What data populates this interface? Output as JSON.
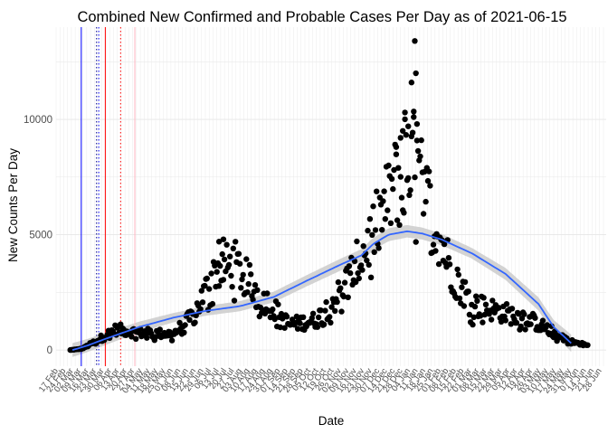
{
  "chart_data": {
    "type": "scatter",
    "title": "Combined New Confirmed and Probable Cases Per Day as of 2021-06-15",
    "xlabel": "Date",
    "ylabel": "New Counts Per Day",
    "grid": true,
    "legend": "none",
    "xlim": [
      "2020-02-15",
      "2021-07-02"
    ],
    "ylim": [
      -700,
      14000
    ],
    "y_ticks": [
      0,
      5000,
      10000
    ],
    "y_tick_labels": [
      "0",
      "5000",
      "10000"
    ],
    "x_tick_dates": [
      "2020-02-17",
      "2020-02-24",
      "2020-03-02",
      "2020-03-09",
      "2020-03-16",
      "2020-03-23",
      "2020-03-30",
      "2020-04-06",
      "2020-04-13",
      "2020-04-20",
      "2020-04-27",
      "2020-05-04",
      "2020-05-11",
      "2020-05-18",
      "2020-05-25",
      "2020-06-01",
      "2020-06-08",
      "2020-06-15",
      "2020-06-22",
      "2020-06-29",
      "2020-07-06",
      "2020-07-13",
      "2020-07-20",
      "2020-07-27",
      "2020-08-03",
      "2020-08-10",
      "2020-08-17",
      "2020-08-24",
      "2020-08-31",
      "2020-09-07",
      "2020-09-14",
      "2020-09-21",
      "2020-09-28",
      "2020-10-05",
      "2020-10-12",
      "2020-10-19",
      "2020-10-26",
      "2020-11-02",
      "2020-11-09",
      "2020-11-16",
      "2020-11-23",
      "2020-11-30",
      "2020-12-07",
      "2020-12-14",
      "2020-12-21",
      "2020-12-28",
      "2021-01-04",
      "2021-01-11",
      "2021-01-18",
      "2021-01-25",
      "2021-02-01",
      "2021-02-08",
      "2021-02-15",
      "2021-02-22",
      "2021-03-01",
      "2021-03-08",
      "2021-03-15",
      "2021-03-22",
      "2021-03-29",
      "2021-04-05",
      "2021-04-12",
      "2021-04-19",
      "2021-04-26",
      "2021-05-03",
      "2021-05-10",
      "2021-05-17",
      "2021-05-24",
      "2021-05-31",
      "2021-06-07",
      "2021-06-14",
      "2021-06-21",
      "2021-06-28"
    ],
    "x_tick_labels": [
      "17 Feb",
      "24 Feb",
      "02 Mar",
      "09 Mar",
      "16 Mar",
      "23 Mar",
      "30 Mar",
      "06 Apr",
      "13 Apr",
      "20 Apr",
      "27 Apr",
      "04 May",
      "11 May",
      "18 May",
      "25 May",
      "01 Jun",
      "08 Jun",
      "15 Jun",
      "22 Jun",
      "29 Jun",
      "06 Jul",
      "13 Jul",
      "20 Jul",
      "27 Jul",
      "03 Aug",
      "10 Aug",
      "17 Aug",
      "24 Aug",
      "31 Aug",
      "07 Sep",
      "14 Sep",
      "21 Sep",
      "28 Sep",
      "05 Oct",
      "12 Oct",
      "19 Oct",
      "26 Oct",
      "02 Nov",
      "09 Nov",
      "16 Nov",
      "23 Nov",
      "30 Nov",
      "07 Dec",
      "14 Dec",
      "21 Dec",
      "28 Dec",
      "04 Jan",
      "11 Jan",
      "18 Jan",
      "25 Jan",
      "01 Feb",
      "08 Feb",
      "15 Feb",
      "22 Feb",
      "01 Mar",
      "08 Mar",
      "15 Mar",
      "22 Mar",
      "29 Mar",
      "05 Apr",
      "12 Apr",
      "19 Apr",
      "26 Apr",
      "03 May",
      "10 May",
      "17 May",
      "24 May",
      "31 May",
      "07 Jun",
      "14 Jun",
      "21 Jun",
      "28 Jun"
    ],
    "vertical_lines": [
      {
        "date": "2020-03-09",
        "color": "#0000ff",
        "style": "solid"
      },
      {
        "date": "2020-03-23",
        "color": "#00008b",
        "style": "dotted"
      },
      {
        "date": "2020-03-25",
        "color": "#0000ff",
        "style": "dotted"
      },
      {
        "date": "2020-03-31",
        "color": "#ff0000",
        "style": "solid"
      },
      {
        "date": "2020-04-14",
        "color": "#ff0000",
        "style": "dotted"
      },
      {
        "date": "2020-04-27",
        "color": "#ffb6c1",
        "style": "solid"
      }
    ],
    "point_color": "#000000",
    "smooth_color": "#3366ff",
    "band_color": "#c8c8c8",
    "smooth_trend": [
      {
        "x": "2020-03-01",
        "y": 0
      },
      {
        "x": "2020-03-15",
        "y": 200
      },
      {
        "x": "2020-04-01",
        "y": 500
      },
      {
        "x": "2020-05-01",
        "y": 1000
      },
      {
        "x": "2020-06-01",
        "y": 1400
      },
      {
        "x": "2020-07-01",
        "y": 1700
      },
      {
        "x": "2020-08-01",
        "y": 1900
      },
      {
        "x": "2020-09-01",
        "y": 2300
      },
      {
        "x": "2020-10-01",
        "y": 3000
      },
      {
        "x": "2020-11-01",
        "y": 3700
      },
      {
        "x": "2020-11-20",
        "y": 4100
      },
      {
        "x": "2020-12-01",
        "y": 4600
      },
      {
        "x": "2020-12-15",
        "y": 5000
      },
      {
        "x": "2021-01-01",
        "y": 5150
      },
      {
        "x": "2021-01-15",
        "y": 5050
      },
      {
        "x": "2021-02-01",
        "y": 4800
      },
      {
        "x": "2021-03-01",
        "y": 4200
      },
      {
        "x": "2021-04-01",
        "y": 3300
      },
      {
        "x": "2021-05-01",
        "y": 2000
      },
      {
        "x": "2021-05-15",
        "y": 1000
      },
      {
        "x": "2021-06-01",
        "y": 250
      }
    ],
    "band_halfwidth": [
      {
        "x": "2020-03-01",
        "y": 300
      },
      {
        "x": "2020-06-01",
        "y": 200
      },
      {
        "x": "2020-09-01",
        "y": 230
      },
      {
        "x": "2020-12-15",
        "y": 280
      },
      {
        "x": "2021-03-01",
        "y": 230
      },
      {
        "x": "2021-05-15",
        "y": 300
      },
      {
        "x": "2021-06-01",
        "y": 380
      }
    ],
    "daily_trend": [
      {
        "x": "2020-02-28",
        "y": 0
      },
      {
        "x": "2020-03-10",
        "y": 60
      },
      {
        "x": "2020-03-25",
        "y": 450
      },
      {
        "x": "2020-04-10",
        "y": 900
      },
      {
        "x": "2020-05-01",
        "y": 750
      },
      {
        "x": "2020-06-01",
        "y": 700
      },
      {
        "x": "2020-06-20",
        "y": 1500
      },
      {
        "x": "2020-07-10",
        "y": 3500
      },
      {
        "x": "2020-07-28",
        "y": 3700
      },
      {
        "x": "2020-08-15",
        "y": 2600
      },
      {
        "x": "2020-09-01",
        "y": 1800
      },
      {
        "x": "2020-09-15",
        "y": 1100
      },
      {
        "x": "2020-10-10",
        "y": 1300
      },
      {
        "x": "2020-11-01",
        "y": 2500
      },
      {
        "x": "2020-11-20",
        "y": 4000
      },
      {
        "x": "2020-12-10",
        "y": 6000
      },
      {
        "x": "2020-12-28",
        "y": 8000
      },
      {
        "x": "2021-01-07",
        "y": 8200
      },
      {
        "x": "2021-01-20",
        "y": 6500
      },
      {
        "x": "2021-02-10",
        "y": 3500
      },
      {
        "x": "2021-03-01",
        "y": 2000
      },
      {
        "x": "2021-04-01",
        "y": 1600
      },
      {
        "x": "2021-04-20",
        "y": 1400
      },
      {
        "x": "2021-05-10",
        "y": 900
      },
      {
        "x": "2021-06-01",
        "y": 350
      },
      {
        "x": "2021-06-15",
        "y": 200
      }
    ],
    "spread_fraction": 0.28,
    "highlight_points": [
      {
        "x": "2021-01-08",
        "y": 13400
      },
      {
        "x": "2021-01-09",
        "y": 12000
      },
      {
        "x": "2021-01-05",
        "y": 11600
      },
      {
        "x": "2020-12-30",
        "y": 10300
      },
      {
        "x": "2021-01-10",
        "y": 9800
      },
      {
        "x": "2021-01-07",
        "y": 10100
      },
      {
        "x": "2020-12-26",
        "y": 9200
      },
      {
        "x": "2020-12-28",
        "y": 9500
      },
      {
        "x": "2021-01-02",
        "y": 9700
      },
      {
        "x": "2020-07-17",
        "y": 4800
      },
      {
        "x": "2020-07-13",
        "y": 4700
      },
      {
        "x": "2020-12-22",
        "y": 8800
      }
    ]
  }
}
